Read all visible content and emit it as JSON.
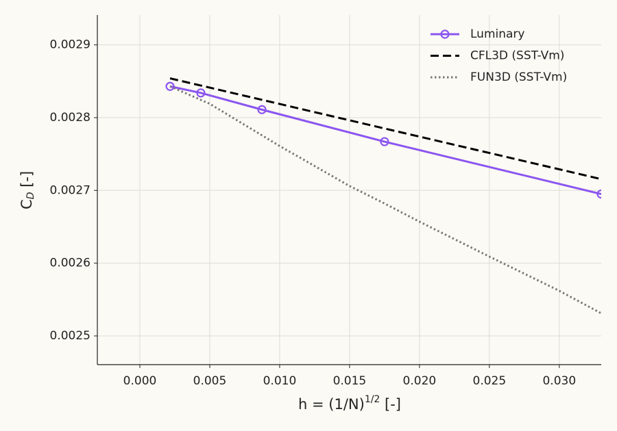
{
  "chart_data": {
    "type": "line",
    "xlabel": [
      "h = (1/N)",
      "1/2",
      " [-]"
    ],
    "ylabel": [
      "C",
      "D",
      " [-]"
    ],
    "xlim": [
      -0.00304,
      0.033
    ],
    "ylim": [
      0.0024605,
      0.002941
    ],
    "xticks": [
      {
        "value": 0,
        "label": "0.000"
      },
      0.005,
      {
        "value": 0.01,
        "label": "0.010"
      },
      0.015,
      {
        "value": 0.02,
        "label": "0.020"
      },
      0.025,
      {
        "value": 0.03,
        "label": "0.030"
      }
    ],
    "yticks": [
      0.0025,
      0.0026,
      0.0027,
      0.0028,
      0.0029
    ],
    "grid": true,
    "legend": "upper right",
    "series": [
      {
        "name": "Luminary",
        "color": "#8b55f0",
        "style": "solid",
        "marker": "circle",
        "x": [
          0.00216,
          0.00436,
          0.00873,
          0.0175,
          0.033
        ],
        "values": [
          0.002843,
          0.002834,
          0.002811,
          0.002767,
          0.002695
        ]
      },
      {
        "name": "CFL3D (SST-Vm)",
        "color": "#000000",
        "style": "dashed",
        "x": [
          0.00216,
          0.033
        ],
        "values": [
          0.002854,
          0.0027155
        ]
      },
      {
        "name": "FUN3D (SST-Vm)",
        "color": "#777777",
        "style": "dotted",
        "x": [
          0.00216,
          0.005,
          0.01,
          0.015,
          0.0175,
          0.02,
          0.025,
          0.03,
          0.033
        ],
        "values": [
          0.002843,
          0.002819,
          0.002761,
          0.002706,
          0.002682,
          0.002657,
          0.002609,
          0.002562,
          0.002531
        ]
      }
    ]
  }
}
